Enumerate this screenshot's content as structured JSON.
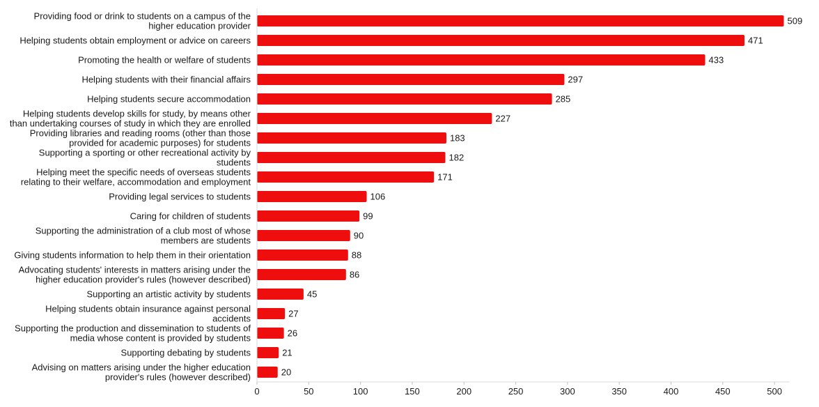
{
  "chart_data": {
    "type": "bar",
    "orientation": "horizontal",
    "title": "",
    "xlabel": "",
    "ylabel": "",
    "categories": [
      [
        "Providing food or drink to students on a campus of the",
        "higher education provider"
      ],
      [
        "Helping students obtain employment or advice on careers"
      ],
      [
        "Promoting the health or welfare of students"
      ],
      [
        "Helping students with their financial affairs"
      ],
      [
        "Helping students secure accommodation"
      ],
      [
        "Helping students develop skills for study, by means other",
        "than undertaking courses of study in which they are enrolled"
      ],
      [
        "Providing libraries and reading rooms (other than those",
        "provided for academic purposes) for students"
      ],
      [
        "Supporting a sporting or other recreational activity by",
        "students"
      ],
      [
        "Helping meet the specific needs of overseas students",
        "relating to their welfare, accommodation and employment"
      ],
      [
        "Providing legal services to students"
      ],
      [
        "Caring for children of students"
      ],
      [
        "Supporting the administration of a club most of whose",
        "members are students"
      ],
      [
        "Giving students information to help them in their orientation"
      ],
      [
        "Advocating students' interests in matters arising under the",
        "higher education provider's rules (however described)"
      ],
      [
        "Supporting an artistic activity by students"
      ],
      [
        "Helping students obtain insurance against personal",
        "accidents"
      ],
      [
        "Supporting the production and dissemination to students of",
        "media whose content is provided by students"
      ],
      [
        "Supporting debating by students"
      ],
      [
        "Advising on matters arising under the higher education",
        "provider's rules (however described)"
      ]
    ],
    "values": [
      509,
      471,
      433,
      297,
      285,
      227,
      183,
      182,
      171,
      106,
      99,
      90,
      88,
      86,
      45,
      27,
      26,
      21,
      20
    ],
    "xlim": [
      0,
      509
    ],
    "xticks": [
      0,
      50,
      100,
      150,
      200,
      250,
      300,
      350,
      400,
      450,
      500
    ],
    "grid": false,
    "legend": "none",
    "bar_color": "#ee0e0e"
  }
}
